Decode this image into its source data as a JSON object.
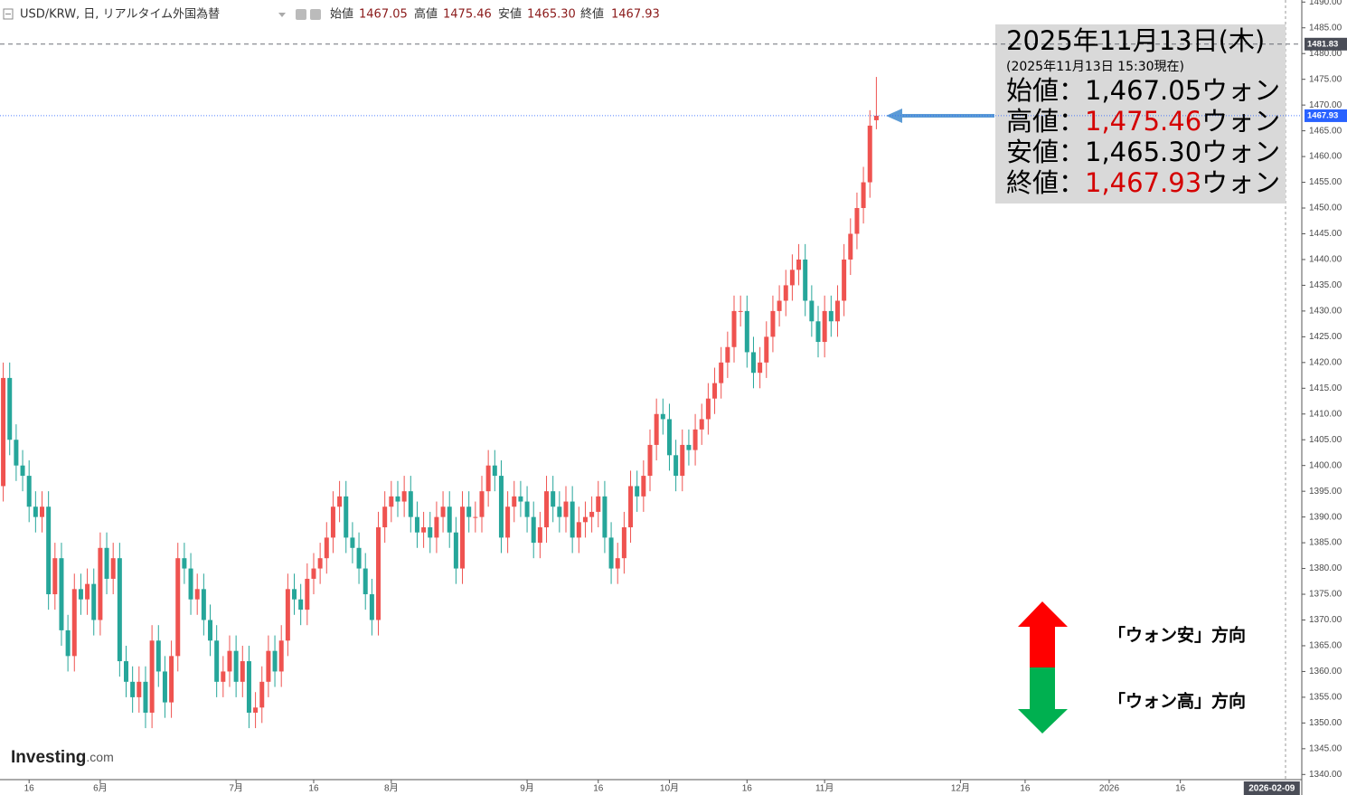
{
  "chart_data": {
    "type": "candlestick",
    "header": {
      "symbol": "USD/KRW, 日, リアルタイム外国為替",
      "ohlc_labels": [
        "始値",
        "高値",
        "安値",
        "終値"
      ],
      "ohlc_values": [
        "1467.05",
        "1475.46",
        "1465.30",
        "1467.93"
      ]
    },
    "up_color": "#ef5350",
    "down_color": "#26a69a",
    "series": {
      "open": [
        1396,
        1417,
        1405,
        1400,
        1398,
        1392,
        1390,
        1392,
        1375,
        1382,
        1368,
        1363,
        1376,
        1374,
        1377,
        1370,
        1384,
        1378,
        1382,
        1362,
        1358,
        1355,
        1358,
        1352,
        1366,
        1360,
        1354,
        1363,
        1382,
        1380,
        1374,
        1376,
        1370,
        1366,
        1358,
        1360,
        1364,
        1358,
        1362,
        1352,
        1353,
        1358,
        1364,
        1360,
        1366,
        1376,
        1374,
        1372,
        1378,
        1380,
        1382,
        1386,
        1392,
        1394,
        1386,
        1384,
        1380,
        1375,
        1370,
        1388,
        1392,
        1394,
        1393,
        1395,
        1390,
        1387,
        1388,
        1386,
        1390,
        1392,
        1387,
        1380,
        1392,
        1390,
        1390,
        1395,
        1400,
        1398,
        1386,
        1392,
        1394,
        1393,
        1390,
        1385,
        1388,
        1395,
        1392,
        1390,
        1393,
        1386,
        1389,
        1390,
        1391,
        1394,
        1386,
        1380,
        1382,
        1388,
        1396,
        1394,
        1398,
        1404,
        1410,
        1409,
        1402,
        1398,
        1404,
        1403,
        1407,
        1409,
        1413,
        1416,
        1420,
        1423,
        1430,
        1430,
        1422,
        1418,
        1420,
        1425,
        1430,
        1432,
        1435,
        1438,
        1440,
        1432,
        1428,
        1424,
        1430,
        1428,
        1432,
        1440,
        1445,
        1450,
        1455,
        1467.05
      ],
      "high": [
        1420,
        1420,
        1408,
        1403,
        1401,
        1395,
        1395,
        1395,
        1385,
        1385,
        1371,
        1379,
        1379,
        1380,
        1380,
        1387,
        1387,
        1385,
        1385,
        1365,
        1361,
        1361,
        1361,
        1369,
        1369,
        1363,
        1366,
        1385,
        1385,
        1383,
        1379,
        1379,
        1373,
        1369,
        1363,
        1367,
        1367,
        1365,
        1365,
        1356,
        1361,
        1367,
        1367,
        1369,
        1379,
        1379,
        1377,
        1381,
        1383,
        1385,
        1389,
        1395,
        1397,
        1397,
        1389,
        1387,
        1383,
        1378,
        1391,
        1395,
        1397,
        1397,
        1398,
        1398,
        1393,
        1391,
        1391,
        1393,
        1395,
        1395,
        1390,
        1395,
        1395,
        1393,
        1398,
        1403,
        1403,
        1401,
        1395,
        1397,
        1397,
        1396,
        1393,
        1391,
        1398,
        1398,
        1395,
        1396,
        1396,
        1392,
        1393,
        1394,
        1397,
        1397,
        1389,
        1385,
        1391,
        1399,
        1399,
        1401,
        1407,
        1413,
        1413,
        1412,
        1405,
        1407,
        1407,
        1410,
        1412,
        1416,
        1419,
        1423,
        1426,
        1433,
        1433,
        1433,
        1425,
        1423,
        1428,
        1433,
        1435,
        1438,
        1441,
        1443,
        1443,
        1435,
        1431,
        1433,
        1433,
        1435,
        1443,
        1448,
        1453,
        1458,
        1469,
        1475.46
      ],
      "low": [
        1393,
        1402,
        1397,
        1395,
        1389,
        1387,
        1387,
        1372,
        1372,
        1365,
        1360,
        1360,
        1371,
        1371,
        1367,
        1367,
        1375,
        1375,
        1359,
        1355,
        1352,
        1352,
        1349,
        1349,
        1357,
        1351,
        1351,
        1360,
        1377,
        1371,
        1371,
        1367,
        1363,
        1355,
        1355,
        1357,
        1355,
        1355,
        1349,
        1349,
        1350,
        1355,
        1357,
        1357,
        1363,
        1371,
        1369,
        1369,
        1375,
        1377,
        1379,
        1383,
        1389,
        1383,
        1381,
        1377,
        1372,
        1367,
        1367,
        1385,
        1389,
        1390,
        1390,
        1387,
        1384,
        1384,
        1383,
        1383,
        1387,
        1384,
        1377,
        1377,
        1387,
        1387,
        1387,
        1392,
        1395,
        1383,
        1383,
        1389,
        1390,
        1387,
        1382,
        1382,
        1385,
        1389,
        1387,
        1387,
        1383,
        1383,
        1386,
        1387,
        1388,
        1383,
        1377,
        1377,
        1379,
        1385,
        1391,
        1391,
        1395,
        1401,
        1406,
        1399,
        1395,
        1395,
        1400,
        1400,
        1404,
        1406,
        1410,
        1413,
        1417,
        1420,
        1427,
        1419,
        1415,
        1415,
        1417,
        1422,
        1427,
        1429,
        1432,
        1435,
        1429,
        1425,
        1421,
        1421,
        1425,
        1425,
        1429,
        1437,
        1442,
        1447,
        1452,
        1465.3
      ],
      "close": [
        1417,
        1405,
        1400,
        1398,
        1392,
        1390,
        1392,
        1375,
        1382,
        1368,
        1363,
        1376,
        1374,
        1377,
        1370,
        1384,
        1378,
        1382,
        1362,
        1358,
        1355,
        1358,
        1352,
        1366,
        1360,
        1354,
        1363,
        1382,
        1380,
        1374,
        1376,
        1370,
        1366,
        1358,
        1360,
        1364,
        1358,
        1362,
        1352,
        1353,
        1358,
        1364,
        1360,
        1366,
        1376,
        1374,
        1372,
        1378,
        1380,
        1382,
        1386,
        1392,
        1394,
        1386,
        1384,
        1380,
        1375,
        1370,
        1388,
        1392,
        1394,
        1393,
        1395,
        1390,
        1387,
        1388,
        1386,
        1390,
        1392,
        1387,
        1380,
        1392,
        1390,
        1390,
        1395,
        1400,
        1398,
        1386,
        1392,
        1394,
        1393,
        1390,
        1385,
        1388,
        1395,
        1392,
        1390,
        1393,
        1386,
        1389,
        1390,
        1391,
        1394,
        1386,
        1380,
        1382,
        1388,
        1396,
        1394,
        1398,
        1404,
        1410,
        1409,
        1402,
        1398,
        1404,
        1403,
        1407,
        1409,
        1413,
        1416,
        1420,
        1423,
        1430,
        1430,
        1422,
        1418,
        1420,
        1425,
        1430,
        1432,
        1435,
        1438,
        1440,
        1432,
        1428,
        1424,
        1430,
        1428,
        1432,
        1440,
        1445,
        1450,
        1455,
        1466,
        1467.93
      ]
    },
    "ylim": [
      1339,
      1490.4
    ],
    "yticks": [
      {
        "value": 1340,
        "label": "1340.00"
      },
      {
        "value": 1345,
        "label": "1345.00"
      },
      {
        "value": 1350,
        "label": "1350.00"
      },
      {
        "value": 1355,
        "label": "1355.00"
      },
      {
        "value": 1360,
        "label": "1360.00"
      },
      {
        "value": 1365,
        "label": "1365.00"
      },
      {
        "value": 1370,
        "label": "1370.00"
      },
      {
        "value": 1375,
        "label": "1375.00"
      },
      {
        "value": 1380,
        "label": "1380.00"
      },
      {
        "value": 1385,
        "label": "1385.00"
      },
      {
        "value": 1390,
        "label": "1390.00"
      },
      {
        "value": 1395,
        "label": "1395.00"
      },
      {
        "value": 1400,
        "label": "1400.00"
      },
      {
        "value": 1405,
        "label": "1405.00"
      },
      {
        "value": 1410,
        "label": "1410.00"
      },
      {
        "value": 1415,
        "label": "1415.00"
      },
      {
        "value": 1420,
        "label": "1420.00"
      },
      {
        "value": 1425,
        "label": "1425.00"
      },
      {
        "value": 1430,
        "label": "1430.00"
      },
      {
        "value": 1435,
        "label": "1435.00"
      },
      {
        "value": 1440,
        "label": "1440.00"
      },
      {
        "value": 1445,
        "label": "1445.00"
      },
      {
        "value": 1450,
        "label": "1450.00"
      },
      {
        "value": 1455,
        "label": "1455.00"
      },
      {
        "value": 1460,
        "label": "1460.00"
      },
      {
        "value": 1465,
        "label": "1465.00"
      },
      {
        "value": 1470,
        "label": "1470.00"
      },
      {
        "value": 1475,
        "label": "1475.00"
      },
      {
        "value": 1480,
        "label": "1480.00"
      },
      {
        "value": 1485,
        "label": "1485.00"
      },
      {
        "value": 1490,
        "label": "1490.00"
      }
    ],
    "xlim": [
      -0.5,
      200.5
    ],
    "xticks": [
      {
        "value": 4,
        "label": "16"
      },
      {
        "value": 15,
        "label": "6月"
      },
      {
        "value": 36,
        "label": "7月"
      },
      {
        "value": 48,
        "label": "16"
      },
      {
        "value": 60,
        "label": "8月"
      },
      {
        "value": 81,
        "label": "9月"
      },
      {
        "value": 92,
        "label": "16"
      },
      {
        "value": 103,
        "label": "10月"
      },
      {
        "value": 115,
        "label": "16"
      },
      {
        "value": 127,
        "label": "11月"
      },
      {
        "value": 148,
        "label": "12月"
      },
      {
        "value": 158,
        "label": "16"
      },
      {
        "value": 171,
        "label": "2026"
      },
      {
        "value": 182,
        "label": "16"
      }
    ],
    "x_cursor": {
      "value": 196,
      "label": "2026-02-09"
    },
    "price_lines": [
      {
        "value": 1481.83,
        "color": "#4a4d57"
      },
      {
        "value": 1467.93,
        "color": "#2962ff"
      }
    ],
    "annotation": {
      "date": "2025年11月13日(木)",
      "asof": "(2025年11月13日 15:30現在)",
      "rows": [
        {
          "label": "始値：",
          "value": "1,467.05",
          "unit": "ウォン",
          "color": "#000000"
        },
        {
          "label": "高値：",
          "value": "1,475.46",
          "unit": "ウォン",
          "color": "#d40000"
        },
        {
          "label": "安値：",
          "value": "1,465.30",
          "unit": "ウォン",
          "color": "#000000"
        },
        {
          "label": "終値：",
          "value": "1,467.93",
          "unit": "ウォン",
          "color": "#d40000"
        }
      ]
    },
    "legend": [
      {
        "label": "「ウォン安」方向",
        "color": "#ff0000"
      },
      {
        "label": "「ウォン高」方向",
        "color": "#00b050"
      }
    ],
    "logo": [
      "Investing",
      ".com"
    ]
  }
}
